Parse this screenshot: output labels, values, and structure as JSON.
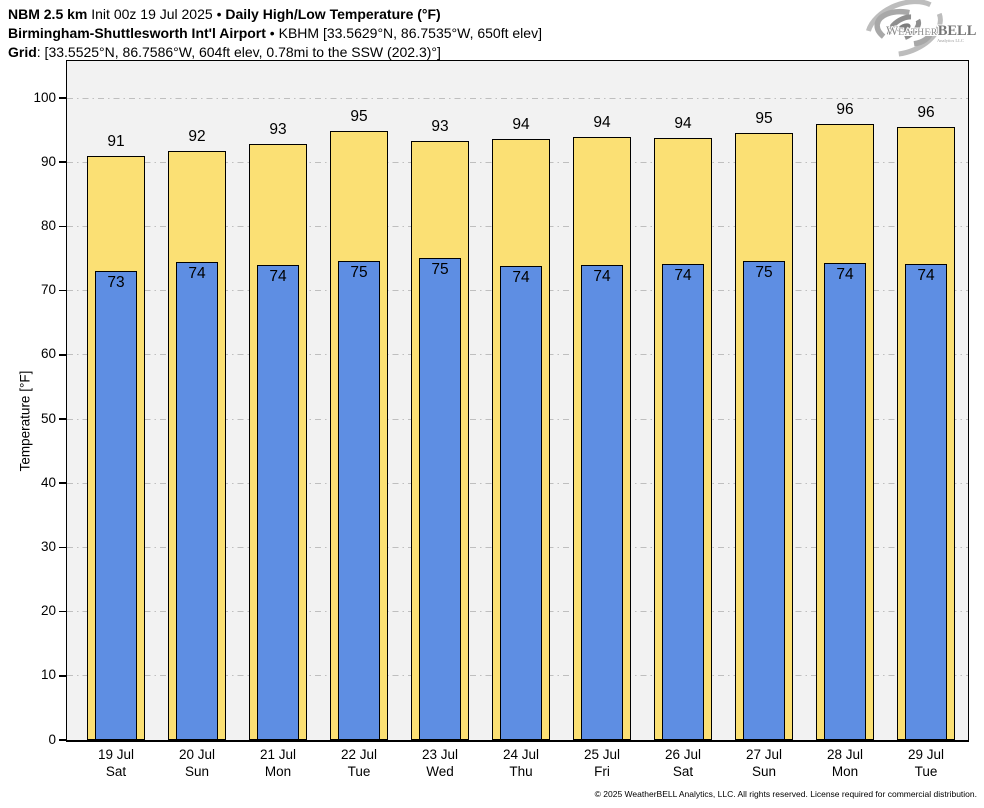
{
  "header": {
    "line1": {
      "model": "NBM 2.5 km",
      "init": " Init 00z 19 Jul 2025 ",
      "bullet": "• ",
      "product": "Daily High/Low Temperature (°F)"
    },
    "line2": {
      "station": "Birmingham-Shuttlesworth Int'l Airport",
      "bullet": " • ",
      "details": "KBHM [33.5629°N, 86.7535°W, 650ft elev]"
    },
    "line3": {
      "label": "Grid",
      "details": ": [33.5525°N, 86.7586°W, 604ft elev, 0.78mi to the SSW (202.3)°]"
    }
  },
  "logo": {
    "w": "W",
    "eather": "EATHER",
    "bell": "BELL",
    "sub": "Analytics LLC"
  },
  "footer": "© 2025 WeatherBELL Analytics, LLC. All rights reserved. License required for commercial distribution.",
  "chart_data": {
    "type": "bar",
    "title": "Daily High/Low Temperature (°F)",
    "xlabel": "",
    "ylabel": "Temperature [°F]",
    "ylim": [
      0,
      100
    ],
    "yticks": [
      0,
      10,
      20,
      30,
      40,
      50,
      60,
      70,
      80,
      90,
      100
    ],
    "grid": true,
    "legend": "none",
    "plot_bg": "#f2f2f2",
    "grid_color": "#bfbfbf",
    "bar_edge_color": "#000000",
    "categories": [
      {
        "date": "19 Jul",
        "day": "Sat"
      },
      {
        "date": "20 Jul",
        "day": "Sun"
      },
      {
        "date": "21 Jul",
        "day": "Mon"
      },
      {
        "date": "22 Jul",
        "day": "Tue"
      },
      {
        "date": "23 Jul",
        "day": "Wed"
      },
      {
        "date": "24 Jul",
        "day": "Thu"
      },
      {
        "date": "25 Jul",
        "day": "Fri"
      },
      {
        "date": "26 Jul",
        "day": "Sat"
      },
      {
        "date": "27 Jul",
        "day": "Sun"
      },
      {
        "date": "28 Jul",
        "day": "Mon"
      },
      {
        "date": "29 Jul",
        "day": "Tue"
      }
    ],
    "series": [
      {
        "name": "High",
        "color": "#FBE074",
        "label_values": [
          91,
          92,
          93,
          95,
          93,
          94,
          94,
          94,
          95,
          96,
          96
        ],
        "values": [
          91.0,
          91.8,
          92.8,
          94.9,
          93.3,
          93.6,
          94.0,
          93.8,
          94.6,
          96.0,
          95.5
        ]
      },
      {
        "name": "Low",
        "color": "#5E8EE3",
        "label_values": [
          73,
          74,
          74,
          75,
          75,
          74,
          74,
          74,
          75,
          74,
          74
        ],
        "values": [
          73.1,
          74.4,
          74.0,
          74.6,
          75.1,
          73.8,
          74.0,
          74.2,
          74.6,
          74.3,
          74.2
        ]
      }
    ]
  }
}
